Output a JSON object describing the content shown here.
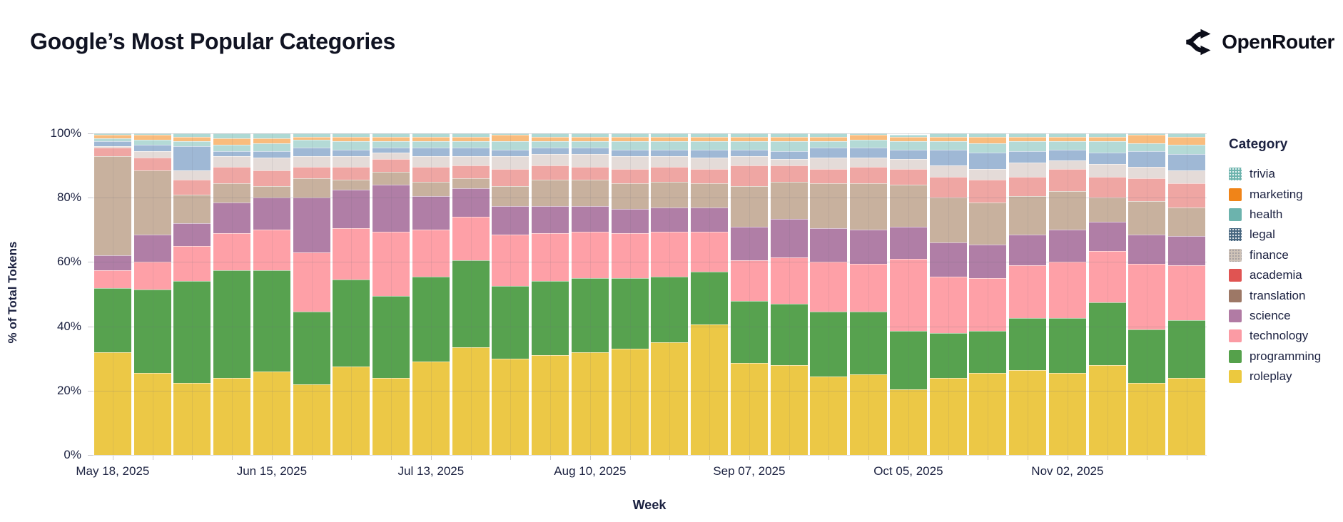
{
  "header": {
    "title": "Google’s Most Popular Categories",
    "brand": "OpenRouter"
  },
  "chart_data": {
    "type": "bar",
    "stacked": true,
    "normalized_percent": true,
    "title": "Google’s Most Popular Categories",
    "xlabel": "Week",
    "ylabel": "% of Total Tokens",
    "ylim": [
      0,
      100
    ],
    "grid": true,
    "legend_position": "right",
    "y_tick_labels": [
      "0%",
      "20%",
      "40%",
      "60%",
      "80%",
      "100%"
    ],
    "x_tick_labels": [
      "May 18, 2025",
      "Jun 15, 2025",
      "Jul 13, 2025",
      "Aug 10, 2025",
      "Sep 07, 2025",
      "Oct 05, 2025",
      "Nov 02, 2025"
    ],
    "x_tick_every": 4,
    "categories": [
      "May 18, 2025",
      "May 25, 2025",
      "Jun 01, 2025",
      "Jun 08, 2025",
      "Jun 15, 2025",
      "Jun 22, 2025",
      "Jun 29, 2025",
      "Jul 06, 2025",
      "Jul 13, 2025",
      "Jul 20, 2025",
      "Jul 27, 2025",
      "Aug 03, 2025",
      "Aug 10, 2025",
      "Aug 17, 2025",
      "Aug 24, 2025",
      "Aug 31, 2025",
      "Sep 07, 2025",
      "Sep 14, 2025",
      "Sep 21, 2025",
      "Sep 28, 2025",
      "Oct 05, 2025",
      "Oct 12, 2025",
      "Oct 19, 2025",
      "Oct 26, 2025",
      "Nov 02, 2025",
      "Nov 09, 2025",
      "Nov 16, 2025",
      "Nov 23, 2025"
    ],
    "series": [
      {
        "name": "roleplay",
        "color": "#ecc846",
        "legend_color": "#ecc93f",
        "values": [
          32,
          25.5,
          22.5,
          24,
          26,
          22,
          27.5,
          24,
          29,
          33.5,
          30,
          31,
          32,
          33,
          35,
          40.5,
          28.5,
          28,
          24.5,
          25,
          20.5,
          24,
          25.5,
          26.5,
          25.5,
          28,
          22.5,
          24
        ]
      },
      {
        "name": "programming",
        "color": "#57a24f",
        "legend_color": "#55a14b",
        "values": [
          20,
          26,
          31.5,
          33.5,
          31.5,
          22.5,
          27,
          25.5,
          26.5,
          27,
          22.5,
          23,
          23,
          22,
          20.5,
          16.5,
          19.5,
          19,
          20,
          19.5,
          18,
          14,
          13,
          16,
          17,
          19.5,
          16.5,
          18
        ]
      },
      {
        "name": "technology",
        "color": "#fea0a7",
        "legend_color": "#fb9ba4",
        "values": [
          5.5,
          8.5,
          11,
          11.5,
          12.5,
          18.5,
          16,
          20,
          14.5,
          13.5,
          16,
          15,
          14.5,
          14,
          14,
          12.5,
          12.5,
          14.5,
          15.5,
          15,
          22.5,
          17.5,
          16.5,
          16.5,
          17.5,
          16,
          20.5,
          17
        ]
      },
      {
        "name": "science",
        "color": "#b07ea6",
        "legend_color": "#b17ba4",
        "values": [
          4.5,
          8.5,
          7,
          9.5,
          10,
          17,
          12,
          14.5,
          10.5,
          9,
          9,
          8.5,
          8,
          7.5,
          7.5,
          7.5,
          10.5,
          12,
          10.5,
          10.5,
          10,
          10.5,
          10.5,
          9.5,
          10,
          9,
          9,
          9
        ]
      },
      {
        "name": "translation",
        "color": "#c8b19e",
        "legend_color": "#9d7866",
        "values": [
          31,
          20,
          9,
          6,
          3.5,
          6,
          3,
          4,
          4.5,
          3,
          6,
          8,
          8,
          8,
          8,
          7.5,
          12.5,
          11.5,
          14,
          14.5,
          13,
          14,
          13,
          12,
          12,
          7.5,
          10.5,
          9
        ]
      },
      {
        "name": "academia",
        "color": "#efa6a3",
        "legend_color": "#e05452",
        "values": [
          2.5,
          4,
          4.5,
          5,
          5,
          3.5,
          4,
          4,
          4.5,
          4,
          5.5,
          4.5,
          4,
          4.5,
          4.5,
          4.5,
          6.5,
          5,
          4.5,
          5,
          5,
          6.5,
          7,
          6,
          7,
          6.5,
          7,
          7.5
        ]
      },
      {
        "name": "finance",
        "color": "#e4dbd8",
        "legend_color": "#cfc3b8",
        "pattern": "dots-dark",
        "values": [
          0.5,
          2,
          3,
          3.5,
          4,
          3.5,
          3.5,
          2,
          3.5,
          3,
          4,
          3.5,
          4,
          4,
          3.5,
          3.5,
          3,
          2,
          3.5,
          3,
          3,
          3.5,
          3.5,
          4.5,
          2.5,
          4,
          3.5,
          4
        ]
      },
      {
        "name": "legal",
        "color": "#9fb8d5",
        "legend_color": "#46657f",
        "pattern": "dots-light",
        "values": [
          1.5,
          2,
          7.5,
          1.5,
          2,
          2.5,
          2,
          1.5,
          2.5,
          2.5,
          2,
          2,
          2,
          2,
          2,
          2.5,
          2,
          2.5,
          3,
          3,
          3,
          5,
          5,
          3.5,
          3.5,
          3.5,
          5,
          5
        ]
      },
      {
        "name": "health",
        "color": "#b4dad6",
        "legend_color": "#6cb3ad",
        "values": [
          1,
          1.5,
          1.5,
          2,
          2.5,
          2.5,
          2.5,
          2,
          2,
          2,
          2.5,
          2,
          2,
          2.5,
          2.5,
          2.5,
          2.5,
          3,
          2,
          2.5,
          2.5,
          2.5,
          3,
          3,
          2.5,
          3.5,
          2.5,
          3
        ]
      },
      {
        "name": "marketing",
        "color": "#f9bc7d",
        "legend_color": "#f08418",
        "values": [
          1,
          1.5,
          1.5,
          2,
          1.5,
          1,
          1.5,
          1.5,
          1.5,
          1.5,
          2,
          1.5,
          1.5,
          1.5,
          1.5,
          1.5,
          1.5,
          1.5,
          1.5,
          1.5,
          1.5,
          1.5,
          2,
          1.5,
          1.5,
          1.5,
          2.5,
          2.5
        ]
      },
      {
        "name": "trivia",
        "color": "#aed9d4",
        "legend_color": "#6cb3ad",
        "pattern": "dots-light",
        "values": [
          0.5,
          0.5,
          1,
          1.5,
          1.5,
          1,
          1,
          1,
          1,
          1,
          0.5,
          1,
          1,
          1,
          1,
          1,
          1,
          1,
          1,
          0.5,
          0.5,
          1,
          1,
          1,
          1,
          1,
          0.5,
          1
        ]
      }
    ],
    "legend": {
      "title": "Category",
      "items": [
        "trivia",
        "marketing",
        "health",
        "legal",
        "finance",
        "academia",
        "translation",
        "science",
        "technology",
        "programming",
        "roleplay"
      ]
    }
  }
}
